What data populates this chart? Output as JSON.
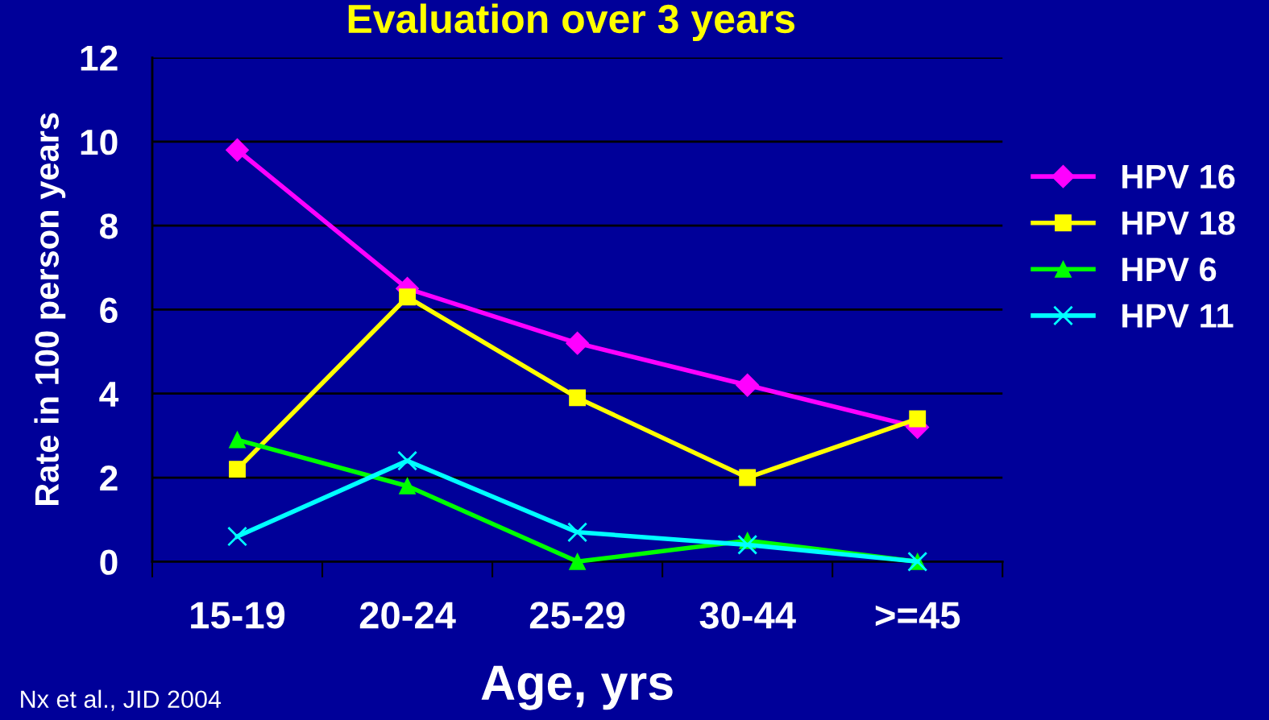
{
  "chart_data": {
    "type": "line",
    "title": "Evaluation over 3 years",
    "xlabel": "Age, yrs",
    "ylabel": "Rate in 100 person years",
    "categories": [
      "15-19",
      "20-24",
      "25-29",
      "30-44",
      ">=45"
    ],
    "series": [
      {
        "name": "HPV 16",
        "color": "#ff00ff",
        "marker": "diamond",
        "values": [
          9.8,
          6.5,
          5.2,
          4.2,
          3.2
        ]
      },
      {
        "name": "HPV 18",
        "color": "#ffff00",
        "marker": "square",
        "values": [
          2.2,
          6.3,
          3.9,
          2.0,
          3.4
        ]
      },
      {
        "name": "HPV 6",
        "color": "#00ff00",
        "marker": "triangle",
        "values": [
          2.9,
          1.8,
          0,
          0.5,
          0
        ]
      },
      {
        "name": "HPV 11",
        "color": "#00ffff",
        "marker": "cross",
        "values": [
          0.6,
          2.4,
          0.7,
          0.4,
          0
        ]
      }
    ],
    "ylim": [
      0,
      12
    ],
    "yticks": [
      0,
      2,
      4,
      6,
      8,
      10,
      12
    ],
    "grid": "y",
    "legend": "right",
    "line_style": "solid",
    "annotations": [
      "Nx et al., JID 2004"
    ]
  }
}
